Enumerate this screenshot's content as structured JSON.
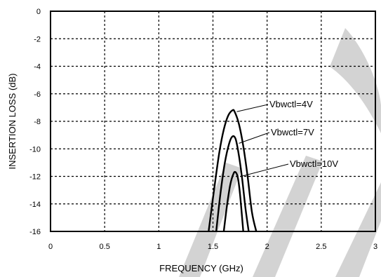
{
  "chart_data": {
    "type": "line",
    "xlabel": "FREQUENCY (GHz)",
    "ylabel": "INSERTION LOSS (dB)",
    "xlim": [
      0,
      3
    ],
    "ylim": [
      -16,
      0
    ],
    "xticks": [
      0,
      0.5,
      1,
      1.5,
      2,
      2.5,
      3
    ],
    "xtick_labels": [
      "0",
      "0.5",
      "1",
      "1.5",
      "2",
      "2.5",
      "3"
    ],
    "yticks": [
      0,
      -2,
      -4,
      -6,
      -8,
      -10,
      -12,
      -14,
      -16
    ],
    "ytick_labels": [
      "0",
      "-2",
      "-4",
      "-6",
      "-8",
      "-10",
      "-12",
      "-14",
      "-16"
    ],
    "grid": true,
    "series": [
      {
        "x": [
          1.46,
          1.52,
          1.56,
          1.6,
          1.64,
          1.68,
          1.7,
          1.74,
          1.78,
          1.82,
          1.86,
          1.9
        ],
        "y": [
          -16,
          -12.4,
          -10.2,
          -8.6,
          -7.6,
          -7.2,
          -7.3,
          -8.2,
          -9.8,
          -12.0,
          -14.6,
          -16
        ]
      },
      {
        "x": [
          1.53,
          1.57,
          1.61,
          1.65,
          1.68,
          1.71,
          1.74,
          1.77,
          1.8,
          1.83
        ],
        "y": [
          -16,
          -13.2,
          -11.0,
          -9.6,
          -9.1,
          -9.3,
          -10.5,
          -12.2,
          -14.3,
          -16
        ]
      },
      {
        "x": [
          1.6,
          1.63,
          1.66,
          1.69,
          1.71,
          1.73,
          1.75,
          1.78
        ],
        "y": [
          -16,
          -14.1,
          -12.6,
          -11.8,
          -11.7,
          -12.1,
          -13.3,
          -16
        ]
      }
    ],
    "annotations": [
      {
        "text": "Vbwctl=4V",
        "target": [
          1.72,
          -7.3
        ]
      },
      {
        "text": "Vbwctl=7V",
        "target": [
          1.74,
          -9.6
        ]
      },
      {
        "text": "Vbwctl=10V",
        "target": [
          1.76,
          -12.0
        ]
      }
    ]
  }
}
